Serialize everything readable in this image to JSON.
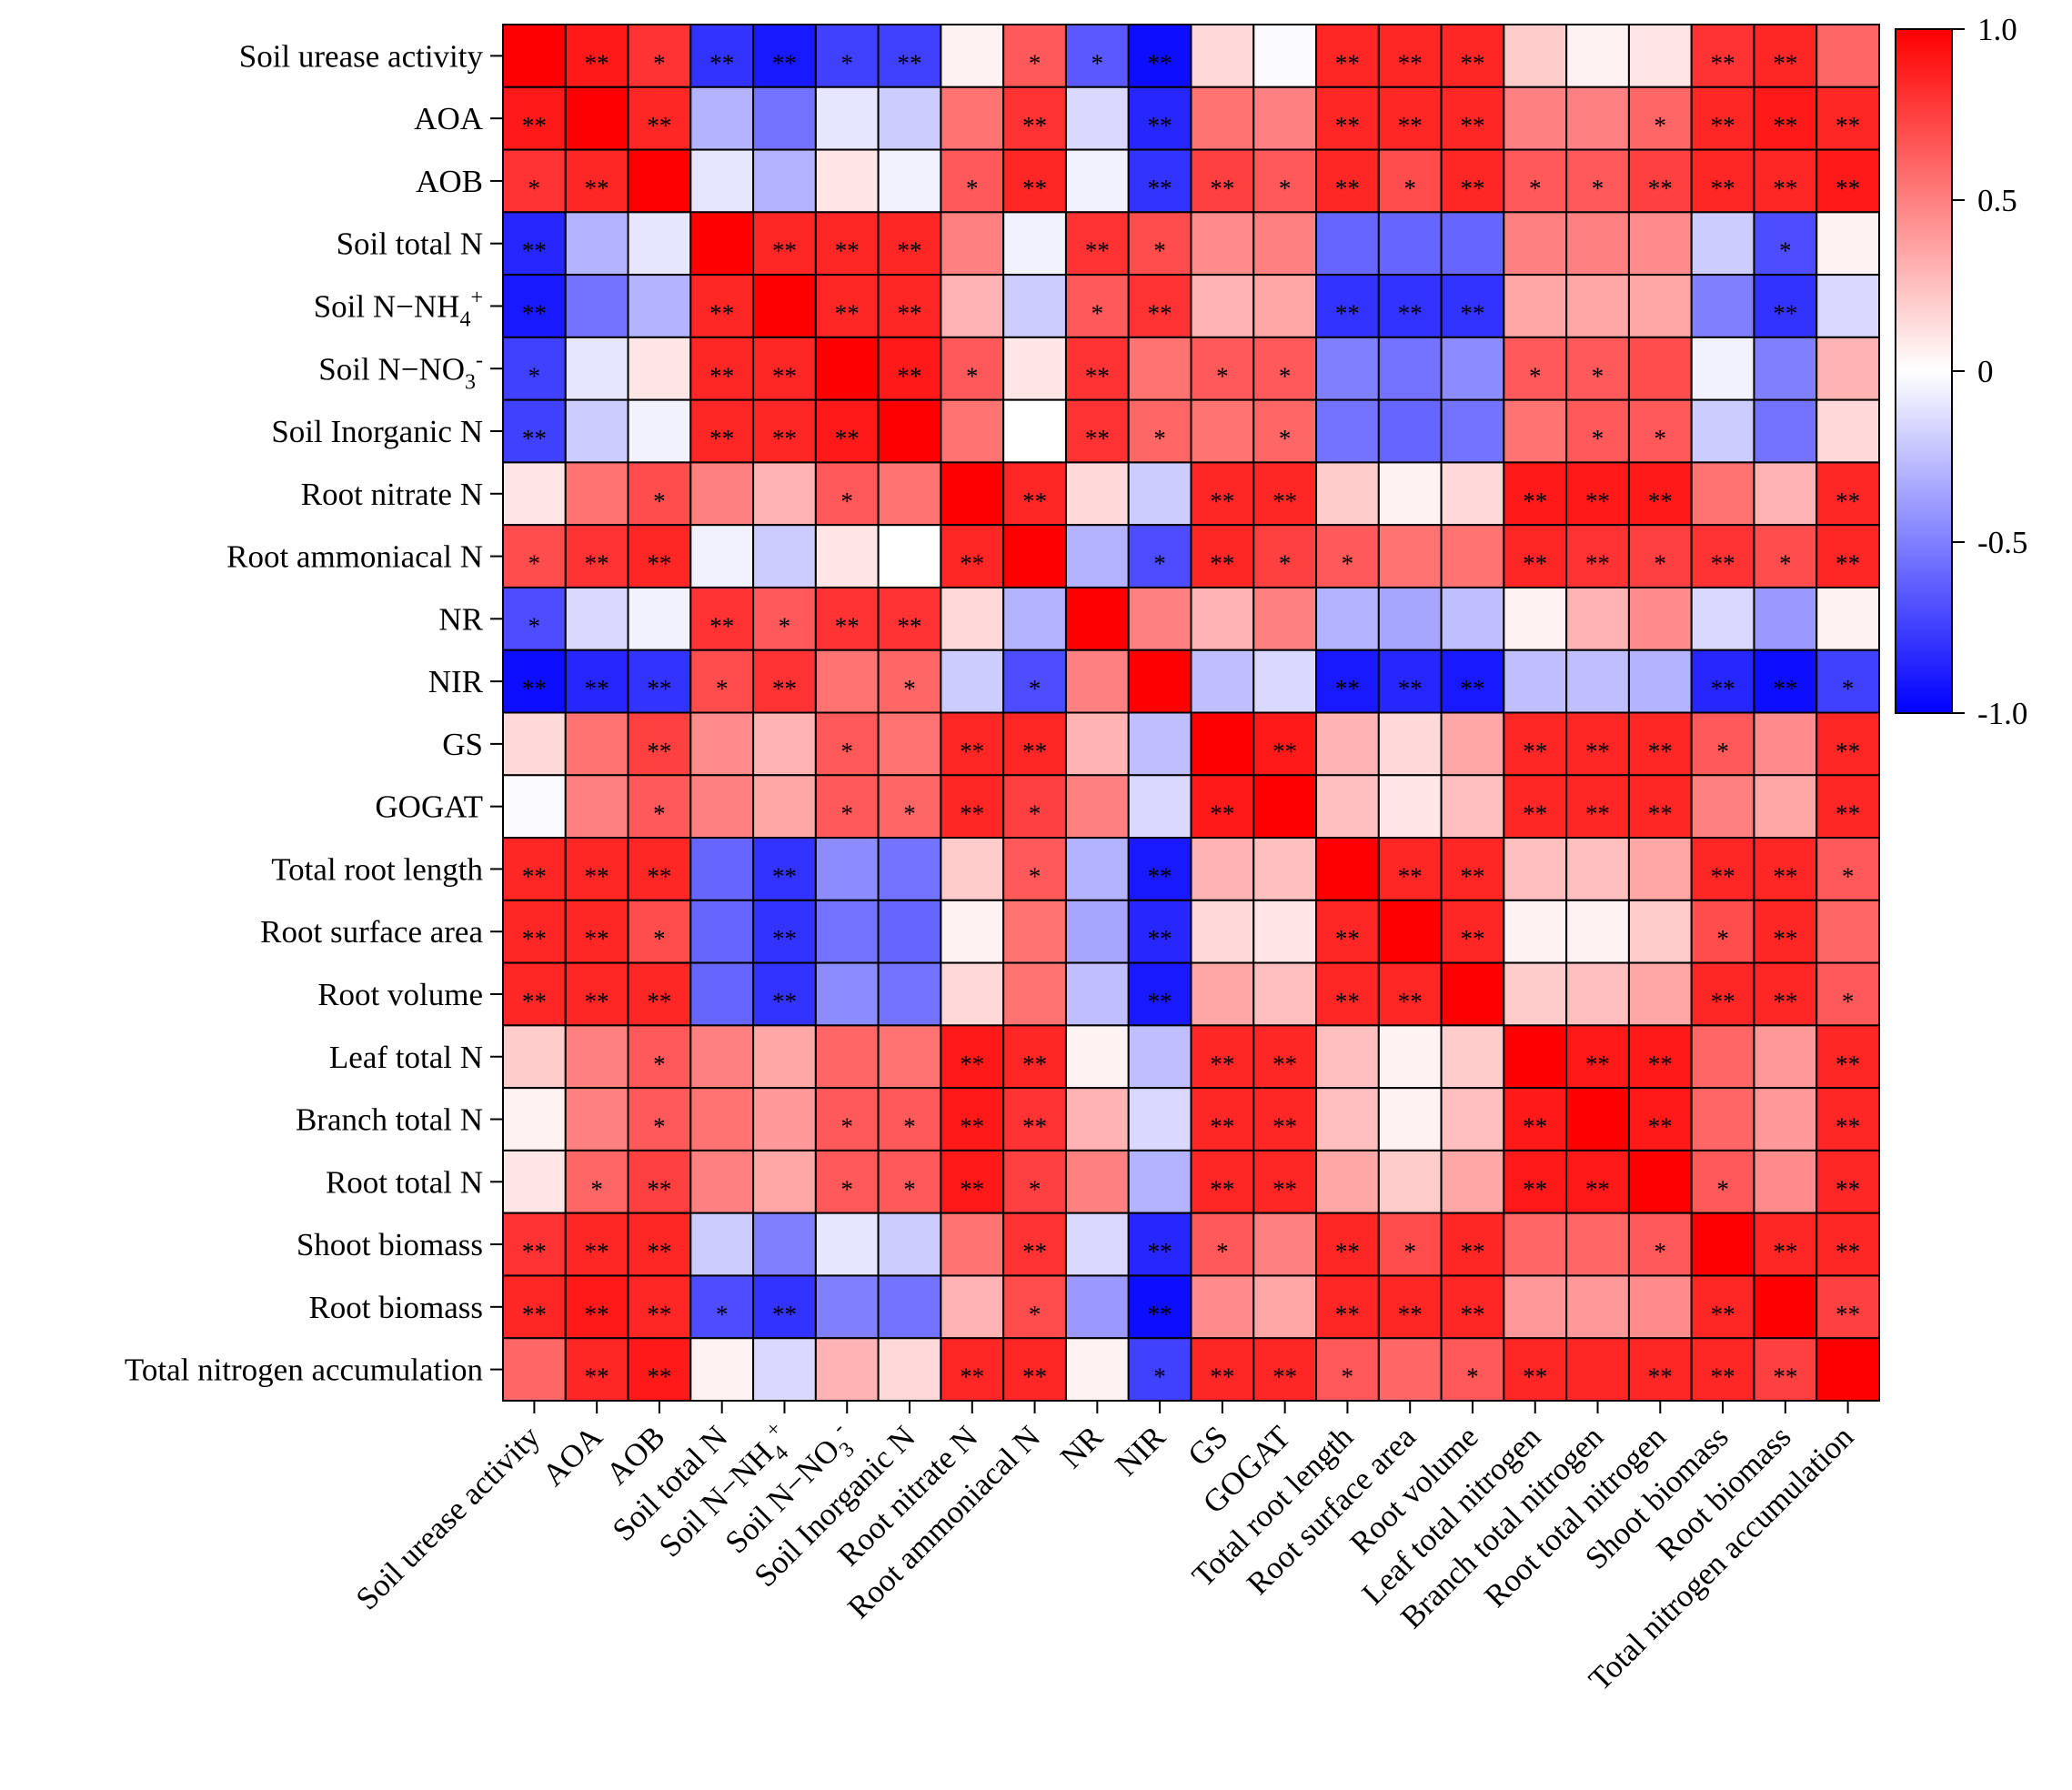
{
  "chart_data": {
    "type": "heatmap",
    "title": "",
    "xlabel": "",
    "ylabel": "",
    "variables": [
      "Soil urease activity",
      "AOA",
      "AOB",
      "Soil total N",
      "Soil N−NH4+",
      "Soil N−NO3-",
      "Soil Inorganic N",
      "Root nitrate N",
      "Root ammoniacal N",
      "NR",
      "NIR",
      "GS",
      "GOGAT",
      "Total root length",
      "Root surface area",
      "Root volume",
      "Leaf total nitrogen",
      "Branch total nitrogen",
      "Root total nitrogen",
      "Shoot biomass",
      "Root biomass",
      "Total nitrogen accumulation"
    ],
    "row_labels": [
      {
        "text": "Soil urease activity"
      },
      {
        "text": "AOA"
      },
      {
        "text": "AOB"
      },
      {
        "text": "Soil total N"
      },
      {
        "text": "Soil N−NH",
        "sub": "4",
        "sup": "+"
      },
      {
        "text": "Soil N−NO",
        "sub": "3",
        "sup": "-"
      },
      {
        "text": "Soil Inorganic N"
      },
      {
        "text": "Root nitrate N"
      },
      {
        "text": "Root ammoniacal N"
      },
      {
        "text": "NR"
      },
      {
        "text": "NIR"
      },
      {
        "text": "GS"
      },
      {
        "text": "GOGAT"
      },
      {
        "text": "Total root length"
      },
      {
        "text": "Root surface area"
      },
      {
        "text": "Root volume"
      },
      {
        "text": "Leaf total N"
      },
      {
        "text": "Branch total N"
      },
      {
        "text": "Root total N"
      },
      {
        "text": "Shoot biomass"
      },
      {
        "text": "Root biomass"
      },
      {
        "text": "Total nitrogen accumulation"
      }
    ],
    "col_labels": [
      {
        "text": "Soil urease activity"
      },
      {
        "text": "AOA"
      },
      {
        "text": "AOB"
      },
      {
        "text": "Soil total N"
      },
      {
        "text": "Soil N−NH",
        "sub": "4",
        "sup": "+"
      },
      {
        "text": "Soil N−NO",
        "sub": "3",
        "sup": "-"
      },
      {
        "text": "Soil Inorganic N"
      },
      {
        "text": "Root nitrate N"
      },
      {
        "text": "Root ammoniacal N"
      },
      {
        "text": "NR"
      },
      {
        "text": "NIR"
      },
      {
        "text": "GS"
      },
      {
        "text": "GOGAT"
      },
      {
        "text": "Total root length"
      },
      {
        "text": "Root surface area"
      },
      {
        "text": "Root volume"
      },
      {
        "text": "Leaf total nitrogen"
      },
      {
        "text": "Branch total nitrogen"
      },
      {
        "text": "Root total nitrogen"
      },
      {
        "text": "Shoot biomass"
      },
      {
        "text": "Root biomass"
      },
      {
        "text": "Total nitrogen accumulation"
      }
    ],
    "values": [
      [
        1.0,
        0.9,
        0.8,
        -0.8,
        -0.9,
        -0.75,
        -0.75,
        0.05,
        0.65,
        -0.65,
        -0.95,
        0.15,
        -0.02,
        0.85,
        0.85,
        0.85,
        0.2,
        0.05,
        0.1,
        0.8,
        0.85,
        0.6
      ],
      [
        0.9,
        1.0,
        0.85,
        -0.3,
        -0.55,
        -0.1,
        -0.2,
        0.55,
        0.8,
        -0.15,
        -0.85,
        0.55,
        0.5,
        0.85,
        0.85,
        0.85,
        0.5,
        0.5,
        0.6,
        0.85,
        0.9,
        0.85
      ],
      [
        0.8,
        0.85,
        1.0,
        -0.1,
        -0.3,
        0.1,
        -0.05,
        0.65,
        0.85,
        -0.05,
        -0.8,
        0.75,
        0.65,
        0.85,
        0.7,
        0.85,
        0.65,
        0.65,
        0.75,
        0.85,
        0.85,
        0.9
      ],
      [
        -0.85,
        -0.3,
        -0.1,
        1.0,
        0.85,
        0.85,
        0.85,
        0.5,
        -0.05,
        0.8,
        0.7,
        0.45,
        0.5,
        -0.6,
        -0.6,
        -0.6,
        0.5,
        0.5,
        0.45,
        -0.2,
        -0.7,
        0.05
      ],
      [
        -0.9,
        -0.55,
        -0.3,
        0.85,
        1.0,
        0.85,
        0.85,
        0.3,
        -0.2,
        0.65,
        0.8,
        0.3,
        0.35,
        -0.8,
        -0.8,
        -0.8,
        0.35,
        0.35,
        0.35,
        -0.5,
        -0.8,
        -0.15
      ],
      [
        -0.75,
        -0.1,
        0.1,
        0.85,
        0.85,
        1.0,
        0.9,
        0.65,
        0.1,
        0.8,
        0.55,
        0.65,
        0.65,
        -0.5,
        -0.55,
        -0.45,
        0.65,
        0.65,
        0.7,
        -0.05,
        -0.5,
        0.3
      ],
      [
        -0.75,
        -0.2,
        -0.05,
        0.85,
        0.85,
        0.9,
        1.0,
        0.55,
        0.0,
        0.8,
        0.6,
        0.55,
        0.6,
        -0.55,
        -0.6,
        -0.55,
        0.55,
        0.65,
        0.65,
        -0.2,
        -0.55,
        0.15
      ],
      [
        0.1,
        0.55,
        0.7,
        0.5,
        0.3,
        0.65,
        0.55,
        1.0,
        0.85,
        0.15,
        -0.2,
        0.85,
        0.85,
        0.2,
        0.05,
        0.15,
        0.9,
        0.9,
        0.9,
        0.55,
        0.3,
        0.85
      ],
      [
        0.7,
        0.8,
        0.85,
        -0.05,
        -0.2,
        0.1,
        0.0,
        0.85,
        1.0,
        -0.3,
        -0.7,
        0.85,
        0.75,
        0.65,
        0.55,
        0.55,
        0.85,
        0.8,
        0.75,
        0.8,
        0.7,
        0.85
      ],
      [
        -0.7,
        -0.15,
        -0.05,
        0.8,
        0.65,
        0.8,
        0.8,
        0.15,
        -0.3,
        1.0,
        0.5,
        0.3,
        0.5,
        -0.3,
        -0.35,
        -0.25,
        0.05,
        0.3,
        0.45,
        -0.15,
        -0.4,
        0.05
      ],
      [
        -0.95,
        -0.85,
        -0.8,
        0.7,
        0.8,
        0.55,
        0.6,
        -0.2,
        -0.7,
        0.5,
        1.0,
        -0.25,
        -0.15,
        -0.9,
        -0.85,
        -0.9,
        -0.25,
        -0.25,
        -0.3,
        -0.85,
        -0.95,
        -0.75
      ],
      [
        0.15,
        0.55,
        0.75,
        0.45,
        0.3,
        0.65,
        0.55,
        0.85,
        0.85,
        0.3,
        -0.25,
        1.0,
        0.9,
        0.3,
        0.15,
        0.35,
        0.85,
        0.85,
        0.85,
        0.65,
        0.45,
        0.85
      ],
      [
        -0.02,
        0.5,
        0.65,
        0.5,
        0.35,
        0.65,
        0.6,
        0.85,
        0.75,
        0.5,
        -0.15,
        0.9,
        1.0,
        0.25,
        0.1,
        0.25,
        0.85,
        0.85,
        0.85,
        0.5,
        0.35,
        0.85
      ],
      [
        0.85,
        0.85,
        0.85,
        -0.6,
        -0.8,
        -0.45,
        -0.55,
        0.2,
        0.65,
        -0.3,
        -0.9,
        0.3,
        0.25,
        1.0,
        0.85,
        0.85,
        0.25,
        0.25,
        0.35,
        0.85,
        0.85,
        0.65
      ],
      [
        0.85,
        0.85,
        0.7,
        -0.6,
        -0.8,
        -0.55,
        -0.6,
        0.05,
        0.55,
        -0.35,
        -0.85,
        0.15,
        0.1,
        0.85,
        1.0,
        0.85,
        0.05,
        0.05,
        0.2,
        0.7,
        0.85,
        0.6
      ],
      [
        0.85,
        0.85,
        0.85,
        -0.6,
        -0.8,
        -0.45,
        -0.55,
        0.15,
        0.55,
        -0.25,
        -0.9,
        0.35,
        0.25,
        0.85,
        0.85,
        1.0,
        0.2,
        0.25,
        0.35,
        0.85,
        0.85,
        0.65
      ],
      [
        0.2,
        0.5,
        0.65,
        0.5,
        0.35,
        0.6,
        0.55,
        0.9,
        0.85,
        0.05,
        -0.25,
        0.85,
        0.85,
        0.25,
        0.05,
        0.2,
        1.0,
        0.9,
        0.9,
        0.6,
        0.4,
        0.85
      ],
      [
        0.05,
        0.5,
        0.65,
        0.55,
        0.4,
        0.65,
        0.65,
        0.9,
        0.8,
        0.3,
        -0.15,
        0.85,
        0.85,
        0.25,
        0.05,
        0.25,
        0.9,
        1.0,
        0.9,
        0.6,
        0.4,
        0.85
      ],
      [
        0.1,
        0.6,
        0.75,
        0.5,
        0.35,
        0.65,
        0.65,
        0.9,
        0.75,
        0.5,
        -0.3,
        0.85,
        0.85,
        0.35,
        0.2,
        0.35,
        0.9,
        0.9,
        1.0,
        0.65,
        0.45,
        0.85
      ],
      [
        0.8,
        0.85,
        0.85,
        -0.2,
        -0.5,
        -0.1,
        -0.2,
        0.55,
        0.8,
        -0.15,
        -0.85,
        0.65,
        0.5,
        0.85,
        0.7,
        0.85,
        0.6,
        0.6,
        0.65,
        1.0,
        0.85,
        0.85
      ],
      [
        0.85,
        0.9,
        0.85,
        -0.7,
        -0.8,
        -0.5,
        -0.55,
        0.3,
        0.7,
        -0.4,
        -0.95,
        0.45,
        0.35,
        0.85,
        0.85,
        0.85,
        0.4,
        0.4,
        0.45,
        0.85,
        1.0,
        0.75
      ],
      [
        0.6,
        0.85,
        0.9,
        0.05,
        -0.15,
        0.3,
        0.15,
        0.85,
        0.85,
        0.05,
        -0.75,
        0.85,
        0.85,
        0.65,
        0.6,
        0.65,
        0.85,
        0.85,
        0.85,
        0.85,
        0.75,
        1.0
      ]
    ],
    "significance": [
      [
        "",
        "**",
        "*",
        "**",
        "**",
        "*",
        "**",
        "",
        "*",
        "*",
        "**",
        "",
        "",
        "**",
        "**",
        "**",
        "",
        "",
        "",
        "**",
        "**",
        ""
      ],
      [
        "**",
        "",
        "**",
        "",
        "",
        "",
        "",
        "",
        "**",
        "",
        "**",
        "",
        "",
        "**",
        "**",
        "**",
        "",
        "",
        "*",
        "**",
        "**",
        "**"
      ],
      [
        "*",
        "**",
        "",
        "",
        "",
        "",
        "",
        "*",
        "**",
        "",
        "**",
        "**",
        "*",
        "**",
        "*",
        "**",
        "*",
        "*",
        "**",
        "**",
        "**",
        "**"
      ],
      [
        "**",
        "",
        "",
        "",
        "**",
        "**",
        "**",
        "",
        "",
        "**",
        "*",
        "",
        "",
        "",
        "",
        "",
        "",
        "",
        "",
        "",
        "*",
        ""
      ],
      [
        "**",
        "",
        "",
        "**",
        "",
        "**",
        "**",
        "",
        "",
        "*",
        "**",
        "",
        "",
        "**",
        "**",
        "**",
        "",
        "",
        "",
        "",
        "**",
        ""
      ],
      [
        "*",
        "",
        "",
        "**",
        "**",
        "",
        "**",
        "*",
        "",
        "**",
        "",
        "*",
        "*",
        "",
        "",
        "",
        "*",
        "*",
        "",
        "",
        "",
        ""
      ],
      [
        "**",
        "",
        "",
        "**",
        "**",
        "**",
        "",
        "",
        "",
        "**",
        "*",
        "",
        "*",
        "",
        "",
        "",
        "",
        "*",
        "*",
        "",
        "",
        ""
      ],
      [
        "",
        "",
        "*",
        "",
        "",
        "*",
        "",
        "",
        "**",
        "",
        "",
        "**",
        "**",
        "",
        "",
        "",
        "**",
        "**",
        "**",
        "",
        "",
        "**"
      ],
      [
        "*",
        "**",
        "**",
        "",
        "",
        "",
        "",
        "**",
        "",
        "",
        "*",
        "**",
        "*",
        "*",
        "",
        "",
        "**",
        "**",
        "*",
        "**",
        "*",
        "**"
      ],
      [
        "*",
        "",
        "",
        "**",
        "*",
        "**",
        "**",
        "",
        "",
        "",
        "",
        "",
        "",
        "",
        "",
        "",
        "",
        "",
        "",
        "",
        "",
        ""
      ],
      [
        "**",
        "**",
        "**",
        "*",
        "**",
        "",
        "*",
        "",
        "*",
        "",
        "",
        "",
        "",
        "**",
        "**",
        "**",
        "",
        "",
        "",
        "**",
        "**",
        "*"
      ],
      [
        "",
        "",
        "**",
        "",
        "",
        "*",
        "",
        "**",
        "**",
        "",
        "",
        "",
        "**",
        "",
        "",
        "",
        "**",
        "**",
        "**",
        "*",
        "",
        "**"
      ],
      [
        "",
        "",
        "*",
        "",
        "",
        "*",
        "*",
        "**",
        "*",
        "",
        "",
        "**",
        "",
        "",
        "",
        "",
        "**",
        "**",
        "**",
        "",
        "",
        "**"
      ],
      [
        "**",
        "**",
        "**",
        "",
        "**",
        "",
        "",
        "",
        "*",
        "",
        "**",
        "",
        "",
        "",
        "**",
        "**",
        "",
        "",
        "",
        "**",
        "**",
        "*"
      ],
      [
        "**",
        "**",
        "*",
        "",
        "**",
        "",
        "",
        "",
        "",
        "",
        "**",
        "",
        "",
        "**",
        "",
        "**",
        "",
        "",
        "",
        "*",
        "**",
        ""
      ],
      [
        "**",
        "**",
        "**",
        "",
        "**",
        "",
        "",
        "",
        "",
        "",
        "**",
        "",
        "",
        "**",
        "**",
        "",
        "",
        "",
        "",
        "**",
        "**",
        "*"
      ],
      [
        "",
        "",
        "*",
        "",
        "",
        "",
        "",
        "**",
        "**",
        "",
        "",
        "**",
        "**",
        "",
        "",
        "",
        "",
        "**",
        "**",
        "",
        "",
        "**"
      ],
      [
        "",
        "",
        "*",
        "",
        "",
        "*",
        "*",
        "**",
        "**",
        "",
        "",
        "**",
        "**",
        "",
        "",
        "",
        "**",
        "",
        "**",
        "",
        "",
        "**"
      ],
      [
        "",
        "*",
        "**",
        "",
        "",
        "*",
        "*",
        "**",
        "*",
        "",
        "",
        "**",
        "**",
        "",
        "",
        "",
        "**",
        "**",
        "",
        "*",
        "",
        "**"
      ],
      [
        "**",
        "**",
        "**",
        "",
        "",
        "",
        "",
        "",
        "**",
        "",
        "**",
        "*",
        "",
        "**",
        "*",
        "**",
        "",
        "",
        "*",
        "",
        "**",
        "**"
      ],
      [
        "**",
        "**",
        "**",
        "*",
        "**",
        "",
        "",
        "",
        "*",
        "",
        "**",
        "",
        "",
        "**",
        "**",
        "**",
        "",
        "",
        "",
        "**",
        "",
        "**"
      ],
      [
        "",
        "**",
        "**",
        "",
        "",
        "",
        "",
        "**",
        "**",
        "",
        "*",
        "**",
        "**",
        "*",
        "",
        "*",
        "**",
        "",
        "**",
        "**",
        "**",
        ""
      ]
    ],
    "colorbar": {
      "ticks": [
        1.0,
        0.5,
        0,
        -0.5,
        -1.0
      ],
      "tick_labels": [
        "1.0",
        "0.5",
        "0",
        "-0.5",
        "-1.0"
      ],
      "vmin": -1.0,
      "vmax": 1.0,
      "colors": {
        "min": "#0000ff",
        "mid": "#ffffff",
        "max": "#ff0000"
      }
    }
  }
}
